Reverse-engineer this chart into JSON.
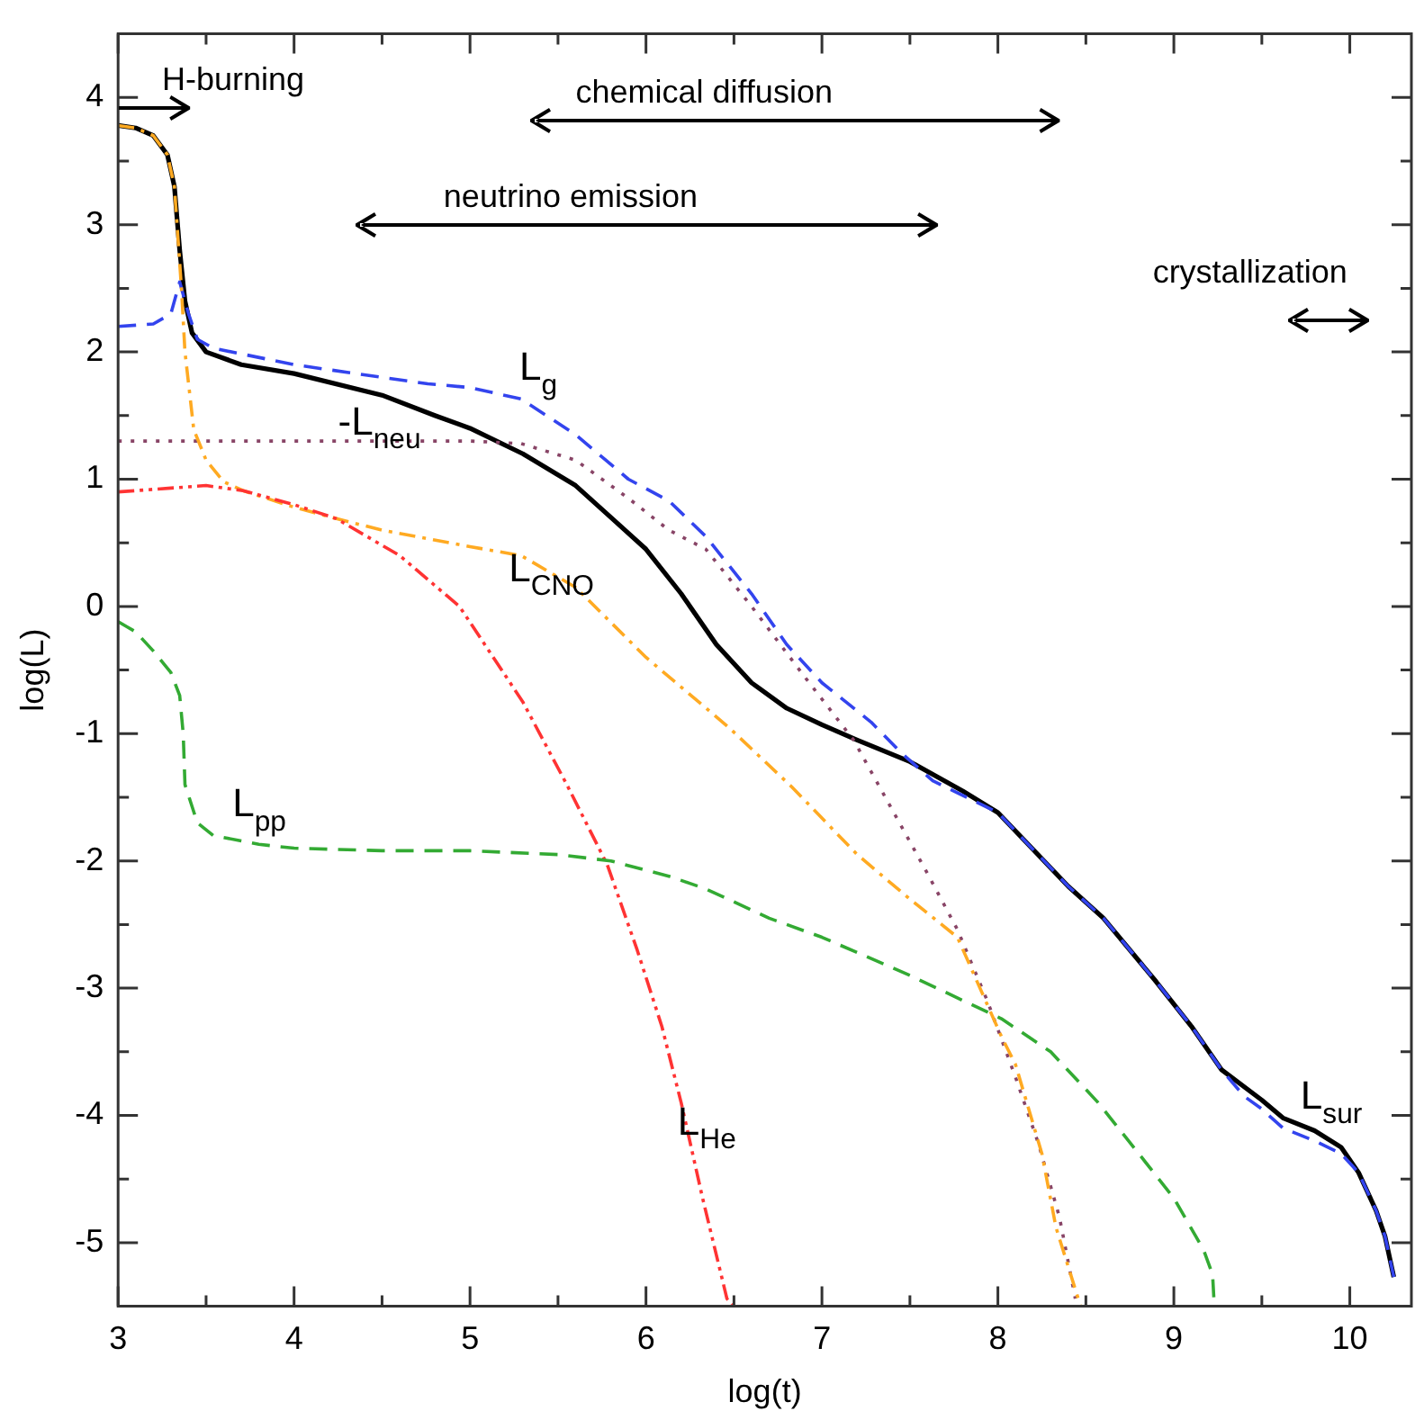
{
  "chart_data": {
    "type": "line",
    "xlabel": "log(t)",
    "ylabel": "log(L)",
    "xlim": [
      3,
      10.35
    ],
    "ylim": [
      -5.5,
      4.5
    ],
    "xticks": [
      3,
      {
        "value": 3.5,
        "label": null
      },
      4,
      {
        "value": 4.5,
        "label": null
      },
      5,
      {
        "value": 5.5,
        "label": null
      },
      6,
      {
        "value": 6.5,
        "label": null
      },
      7,
      {
        "value": 7.5,
        "label": null
      },
      8,
      {
        "value": 8.5,
        "label": null
      },
      9,
      {
        "value": 9.5,
        "label": null
      },
      10
    ],
    "yticks": [
      -5,
      {
        "value": -4.5,
        "label": null
      },
      -4,
      {
        "value": -3.5,
        "label": null
      },
      -3,
      {
        "value": -2.5,
        "label": null
      },
      -2,
      {
        "value": -1.5,
        "label": null
      },
      -1,
      {
        "value": -0.5,
        "label": null
      },
      0,
      {
        "value": 0.5,
        "label": null
      },
      1,
      {
        "value": 1.5,
        "label": null
      },
      2,
      {
        "value": 2.5,
        "label": null
      },
      3,
      {
        "value": 3.5,
        "label": null
      },
      4
    ],
    "grid": false,
    "legend": false,
    "marker": "none",
    "annotations": [
      "H-burning",
      "chemical diffusion",
      "neutrino emission",
      "crystallization"
    ],
    "series": [
      {
        "name": "L$_{sur}$",
        "color": "#000000",
        "line_style": "solid",
        "x": [
          3,
          3.1,
          3.2,
          3.28,
          3.32,
          3.35,
          3.38,
          3.42,
          3.5,
          3.7,
          4.0,
          4.5,
          4.8,
          5.0,
          5.3,
          5.6,
          5.8,
          6.0,
          6.2,
          6.4,
          6.6,
          6.8,
          7.0,
          7.2,
          7.5,
          7.8,
          8.0,
          8.4,
          8.6,
          8.9,
          9.1,
          9.27,
          9.5,
          9.62,
          9.8,
          9.95,
          10.05,
          10.15,
          10.2,
          10.25
        ],
        "values": [
          3.78,
          3.76,
          3.7,
          3.55,
          3.3,
          2.8,
          2.4,
          2.15,
          2.0,
          1.9,
          1.83,
          1.66,
          1.5,
          1.4,
          1.2,
          0.95,
          0.7,
          0.45,
          0.1,
          -0.3,
          -0.6,
          -0.8,
          -0.93,
          -1.05,
          -1.22,
          -1.45,
          -1.62,
          -2.2,
          -2.45,
          -2.95,
          -3.3,
          -3.64,
          -3.88,
          -4.02,
          -4.12,
          -4.25,
          -4.45,
          -4.75,
          -4.95,
          -5.27
        ]
      },
      {
        "name": "L$_{g}$",
        "color": "#3344ee",
        "line_style": "dashed",
        "x": [
          3,
          3.2,
          3.3,
          3.35,
          3.4,
          3.45,
          3.54,
          4.0,
          4.5,
          4.76,
          5.0,
          5.29,
          5.6,
          5.9,
          6.13,
          6.34,
          6.6,
          6.8,
          7.0,
          7.28,
          7.45,
          7.63,
          8.0,
          8.4,
          8.6,
          8.9,
          9.1,
          9.27,
          9.4,
          9.5,
          9.62,
          9.8,
          9.95,
          10.05,
          10.15,
          10.2,
          10.25
        ],
        "values": [
          2.2,
          2.22,
          2.3,
          2.55,
          2.3,
          2.1,
          2.03,
          1.9,
          1.8,
          1.75,
          1.72,
          1.63,
          1.35,
          1.0,
          0.83,
          0.55,
          0.1,
          -0.3,
          -0.6,
          -0.91,
          -1.15,
          -1.37,
          -1.62,
          -2.2,
          -2.45,
          -2.95,
          -3.3,
          -3.64,
          -3.85,
          -3.95,
          -4.1,
          -4.2,
          -4.3,
          -4.45,
          -4.75,
          -4.95,
          -5.27
        ]
      },
      {
        "name": "-L$_{neu}$",
        "color": "#884466",
        "line_style": "dotted",
        "x": [
          3,
          4.0,
          5.0,
          5.29,
          5.6,
          5.9,
          6.13,
          6.34,
          6.6,
          6.9,
          7.18,
          7.4,
          7.6,
          7.77,
          7.94,
          8.1,
          8.23,
          8.35,
          8.44
        ],
        "values": [
          1.3,
          1.3,
          1.3,
          1.28,
          1.15,
          0.85,
          0.6,
          0.45,
          0.0,
          -0.55,
          -1.05,
          -1.6,
          -2.1,
          -2.54,
          -3.1,
          -3.7,
          -4.22,
          -4.8,
          -5.44
        ]
      },
      {
        "name": "L$_{CNO}$",
        "color": "#ffaa22",
        "line_style": "dashdot",
        "x": [
          3,
          3.1,
          3.2,
          3.28,
          3.32,
          3.36,
          3.38,
          3.43,
          3.5,
          3.6,
          3.71,
          4.0,
          4.24,
          4.5,
          5.0,
          5.29,
          5.6,
          6.0,
          6.47,
          6.83,
          7.2,
          7.5,
          7.77,
          8.02,
          8.1,
          8.25,
          8.33,
          8.47
        ],
        "values": [
          3.78,
          3.76,
          3.7,
          3.55,
          3.3,
          2.5,
          2.0,
          1.39,
          1.15,
          0.98,
          0.91,
          0.78,
          0.69,
          0.6,
          0.47,
          0.4,
          0.15,
          -0.4,
          -0.95,
          -1.42,
          -1.95,
          -2.3,
          -2.6,
          -3.38,
          -3.6,
          -4.3,
          -4.88,
          -5.5
        ]
      },
      {
        "name": "L$_{He}$",
        "color": "#ff3333",
        "line_style": "dashdotdot",
        "x": [
          3,
          3.3,
          3.5,
          3.71,
          4.0,
          4.24,
          4.6,
          4.94,
          5.3,
          5.55,
          5.78,
          5.95,
          6.09,
          6.2,
          6.32,
          6.46,
          6.5
        ],
        "values": [
          0.9,
          0.93,
          0.95,
          0.91,
          0.8,
          0.69,
          0.4,
          0.0,
          -0.75,
          -1.4,
          -2.03,
          -2.7,
          -3.3,
          -3.9,
          -4.64,
          -5.44,
          -5.5
        ]
      },
      {
        "name": "L$_{pp}$",
        "color": "#33aa33",
        "line_style": "dashed",
        "x": [
          3,
          3.05,
          3.1,
          3.2,
          3.3,
          3.35,
          3.37,
          3.38,
          3.45,
          3.54,
          3.8,
          4.0,
          4.5,
          5.0,
          5.5,
          5.8,
          6.13,
          6.34,
          6.7,
          7.0,
          7.5,
          8.02,
          8.3,
          8.57,
          8.8,
          9.0,
          9.17,
          9.22,
          9.23
        ],
        "values": [
          -0.12,
          -0.16,
          -0.2,
          -0.35,
          -0.52,
          -0.7,
          -1.0,
          -1.4,
          -1.7,
          -1.8,
          -1.87,
          -1.9,
          -1.92,
          -1.92,
          -1.95,
          -2.0,
          -2.12,
          -2.22,
          -2.45,
          -2.6,
          -2.9,
          -3.24,
          -3.5,
          -3.9,
          -4.3,
          -4.65,
          -5.06,
          -5.25,
          -5.5
        ]
      }
    ]
  }
}
